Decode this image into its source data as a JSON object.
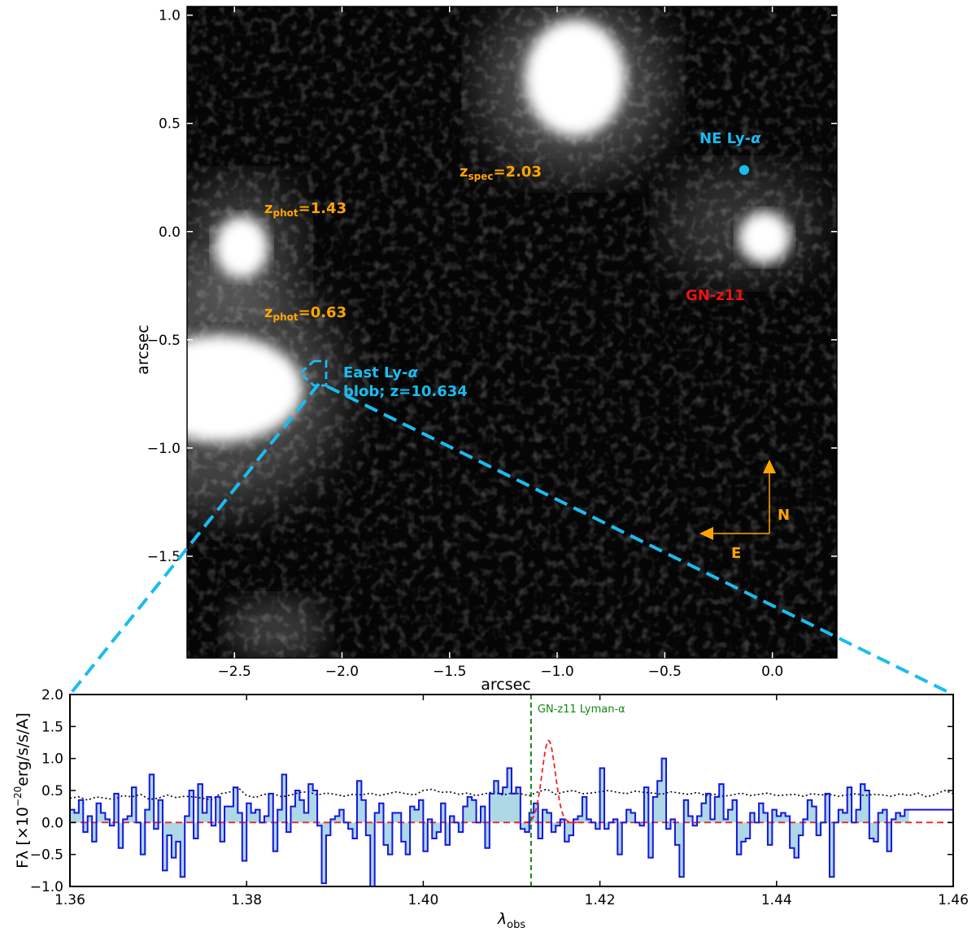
{
  "image_panel": {
    "xlabel": "arcsec",
    "ylabel": "arcsec",
    "xlim": [
      -2.72,
      0.3
    ],
    "ylim": [
      -1.97,
      1.04
    ],
    "xticks": [
      -2.5,
      -2.0,
      -1.5,
      -1.0,
      -0.5,
      0.0
    ],
    "xtick_labels": [
      "−2.5",
      "−2.0",
      "−1.5",
      "−1.0",
      "−0.5",
      "0.0"
    ],
    "yticks": [
      1.0,
      0.5,
      0.0,
      -0.5,
      -1.0,
      -1.5
    ],
    "ytick_labels": [
      "1.0",
      "0.5",
      "0.0",
      "−0.5",
      "−1.0",
      "−1.5"
    ],
    "annotations": {
      "zspec_main": "z",
      "zspec_sub": "spec",
      "zspec_val": "=2.03",
      "zphot1_main": "z",
      "zphot1_sub": "phot",
      "zphot1_val": "=1.43",
      "zphot2_main": "z",
      "zphot2_sub": "phot",
      "zphot2_val": "=0.63",
      "ne_lya": "NE Ly-",
      "alpha": "α",
      "east_line1": "East Ly-",
      "east_line2": "blob; z=10.634",
      "gnz11": "GN-z11",
      "north": "N",
      "east": "E"
    },
    "colors": {
      "orange": "#FFA500",
      "cyan": "#1ABCF0",
      "red": "#EE1111"
    }
  },
  "chart_data": {
    "type": "line",
    "xlabel_main": "λ",
    "xlabel_sub": "obs",
    "ylabel": "Fλ [×10⁻²⁰erg/s/s/A]",
    "ylabel_main": "Fλ [×10",
    "ylabel_exp": "−20",
    "ylabel_tail": "erg/s/s/A]",
    "xlim": [
      1.36,
      1.46
    ],
    "ylim": [
      -1.0,
      2.0
    ],
    "xticks": [
      1.36,
      1.38,
      1.4,
      1.42,
      1.44,
      1.46
    ],
    "xtick_labels": [
      "1.36",
      "1.38",
      "1.40",
      "1.42",
      "1.44",
      "1.46"
    ],
    "yticks": [
      2.0,
      1.5,
      1.0,
      0.5,
      0.0,
      -0.5,
      -1.0
    ],
    "ytick_labels": [
      "2.0",
      "1.5",
      "1.0",
      "0.5",
      "0.0",
      "−0.5",
      "−1.0"
    ],
    "line_marker": {
      "x": 1.4122,
      "label": "GN-z11 Lyman-α",
      "color": "#118811"
    },
    "gaussian_fit": {
      "amplitude": 1.28,
      "center": 1.4142,
      "sigma": 0.00075,
      "color": "#EE2222"
    },
    "spectrum": {
      "name": "",
      "color": "#1515DD",
      "fill": "#ADD8E6",
      "x_start": 1.36,
      "x_step": 0.0005,
      "values": [
        0.2,
        0.15,
        0.35,
        -0.15,
        0.1,
        -0.3,
        0.3,
        0.15,
        0.05,
        -0.05,
        0.45,
        -0.4,
        0.05,
        0.1,
        0.55,
        0.0,
        -0.5,
        0.2,
        0.75,
        -0.1,
        0.35,
        -0.75,
        -0.2,
        -0.55,
        -0.3,
        -0.85,
        0.1,
        0.5,
        -0.25,
        0.6,
        0.15,
        0.4,
        -0.05,
        0.4,
        -0.3,
        0.25,
        0.25,
        0.55,
        0.15,
        -0.6,
        0.3,
        0.15,
        0.2,
        0.0,
        0.1,
        0.45,
        -0.45,
        0.2,
        0.75,
        -0.15,
        0.25,
        0.5,
        0.35,
        0.15,
        0.6,
        0.5,
        -0.05,
        -0.95,
        -0.2,
        0.05,
        0.1,
        0.2,
        0.0,
        -0.1,
        -0.25,
        0.65,
        0.35,
        -0.2,
        -1.0,
        0.15,
        0.3,
        -0.35,
        -0.5,
        0.15,
        0.15,
        -0.3,
        -0.5,
        0.25,
        0.2,
        0.35,
        -0.45,
        0.05,
        -0.25,
        -0.15,
        0.3,
        -0.35,
        0.1,
        0.0,
        -0.15,
        0.25,
        0.4,
        0.35,
        0.0,
        0.25,
        -0.4,
        0.45,
        0.65,
        0.45,
        0.55,
        0.85,
        0.45,
        0.55,
        -0.1,
        -0.15,
        0.15,
        0.3,
        -0.25,
        0.2,
        0.15,
        -0.15,
        -0.05,
        0.05,
        -0.3,
        -0.2,
        0.05,
        0.1,
        0.4,
        0.05,
        0.0,
        -0.1,
        0.85,
        -0.1,
        0.0,
        0.05,
        -0.5,
        0.0,
        0.2,
        0.15,
        0.0,
        -0.05,
        0.55,
        -0.55,
        0.4,
        0.65,
        1.0,
        -0.1,
        0.05,
        -0.35,
        -0.85,
        0.35,
        0.1,
        -0.05,
        0.1,
        0.3,
        0.45,
        0.05,
        0.4,
        0.6,
        0.05,
        0.2,
        0.35,
        -0.5,
        -0.3,
        -0.25,
        0.15,
        0.0,
        0.3,
        0.15,
        -0.35,
        0.2,
        0.1,
        0.15,
        0.1,
        -0.4,
        -0.55,
        -0.2,
        0.05,
        0.35,
        0.25,
        -0.2,
        0.0,
        0.45,
        -0.85,
        0.0,
        0.2,
        0.15,
        0.55,
        0.0,
        0.2,
        0.6,
        0.5,
        -0.25,
        -0.3,
        0.15,
        0.2,
        -0.45,
        0.05,
        0.15,
        0.1,
        0.2
      ]
    },
    "noise": {
      "name": "",
      "color": "#000000",
      "x_start": 1.36,
      "x_step": 0.001,
      "values": [
        0.38,
        0.4,
        0.35,
        0.4,
        0.38,
        0.36,
        0.42,
        0.4,
        0.44,
        0.36,
        0.38,
        0.43,
        0.39,
        0.41,
        0.4,
        0.38,
        0.35,
        0.45,
        0.47,
        0.55,
        0.42,
        0.39,
        0.44,
        0.45,
        0.4,
        0.43,
        0.47,
        0.48,
        0.43,
        0.46,
        0.44,
        0.41,
        0.44,
        0.43,
        0.46,
        0.42,
        0.45,
        0.48,
        0.45,
        0.43,
        0.5,
        0.52,
        0.47,
        0.48,
        0.44,
        0.46,
        0.42,
        0.45,
        0.48,
        0.43,
        0.46,
        0.45,
        0.42,
        0.48,
        0.52,
        0.44,
        0.48,
        0.5,
        0.45,
        0.46,
        0.48,
        0.5,
        0.47,
        0.45,
        0.49,
        0.47,
        0.46,
        0.44,
        0.48,
        0.46,
        0.44,
        0.47,
        0.42,
        0.44,
        0.41,
        0.43,
        0.46,
        0.42,
        0.44,
        0.46,
        0.42,
        0.43,
        0.44,
        0.41,
        0.45,
        0.43,
        0.44,
        0.41,
        0.43,
        0.45,
        0.42,
        0.44,
        0.43,
        0.41,
        0.45,
        0.42,
        0.46,
        0.4,
        0.44,
        0.5,
        0.45
      ]
    }
  }
}
